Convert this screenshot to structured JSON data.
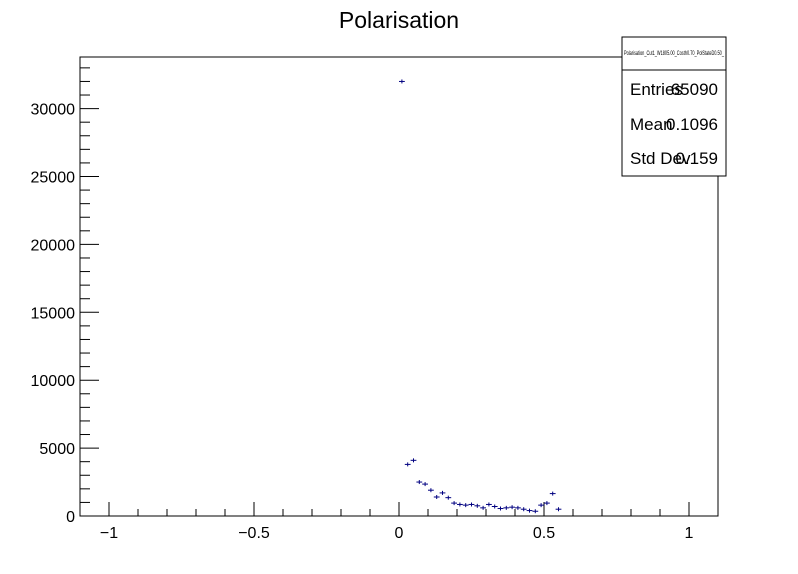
{
  "chart_data": {
    "type": "histogram",
    "title": "Polarisation",
    "xlabel": "",
    "ylabel": "",
    "xlim": [
      -1.1,
      1.1
    ],
    "ylim": [
      0,
      33800
    ],
    "bin_width": 0.02,
    "x_ticks": [
      {
        "value": -1,
        "label": "−1"
      },
      {
        "value": -0.5,
        "label": "−0.5"
      },
      {
        "value": 0,
        "label": "0"
      },
      {
        "value": 0.5,
        "label": "0.5"
      },
      {
        "value": 1,
        "label": "1"
      }
    ],
    "y_ticks": [
      {
        "value": 0,
        "label": "0"
      },
      {
        "value": 5000,
        "label": "5000"
      },
      {
        "value": 10000,
        "label": "10000"
      },
      {
        "value": 15000,
        "label": "15000"
      },
      {
        "value": 20000,
        "label": "20000"
      },
      {
        "value": 25000,
        "label": "25000"
      },
      {
        "value": 30000,
        "label": "30000"
      }
    ],
    "x_minor_step": 0.1,
    "y_minor_step": 1000,
    "marker_color": "#000080",
    "points": [
      {
        "x": 0.01,
        "y": 32000
      },
      {
        "x": 0.03,
        "y": 3800
      },
      {
        "x": 0.05,
        "y": 4100
      },
      {
        "x": 0.07,
        "y": 2500
      },
      {
        "x": 0.09,
        "y": 2350
      },
      {
        "x": 0.11,
        "y": 1900
      },
      {
        "x": 0.13,
        "y": 1400
      },
      {
        "x": 0.15,
        "y": 1700
      },
      {
        "x": 0.17,
        "y": 1350
      },
      {
        "x": 0.19,
        "y": 950
      },
      {
        "x": 0.21,
        "y": 850
      },
      {
        "x": 0.23,
        "y": 800
      },
      {
        "x": 0.25,
        "y": 850
      },
      {
        "x": 0.27,
        "y": 750
      },
      {
        "x": 0.29,
        "y": 600
      },
      {
        "x": 0.31,
        "y": 850
      },
      {
        "x": 0.33,
        "y": 700
      },
      {
        "x": 0.35,
        "y": 550
      },
      {
        "x": 0.37,
        "y": 600
      },
      {
        "x": 0.39,
        "y": 650
      },
      {
        "x": 0.41,
        "y": 600
      },
      {
        "x": 0.43,
        "y": 500
      },
      {
        "x": 0.45,
        "y": 400
      },
      {
        "x": 0.47,
        "y": 350
      },
      {
        "x": 0.49,
        "y": 800
      },
      {
        "x": 0.51,
        "y": 950
      },
      {
        "x": 0.53,
        "y": 1650
      },
      {
        "x": 0.55,
        "y": 500
      }
    ],
    "stats_box": {
      "name": "Polarisation_Cut1_W1805.00_Costh0.70_PolStateD0.50_",
      "entries_label": "Entries",
      "entries_value": "65090",
      "mean_label": "Mean",
      "mean_value": "0.1096",
      "stddev_label": "Std Dev",
      "stddev_value": "0.159"
    }
  }
}
